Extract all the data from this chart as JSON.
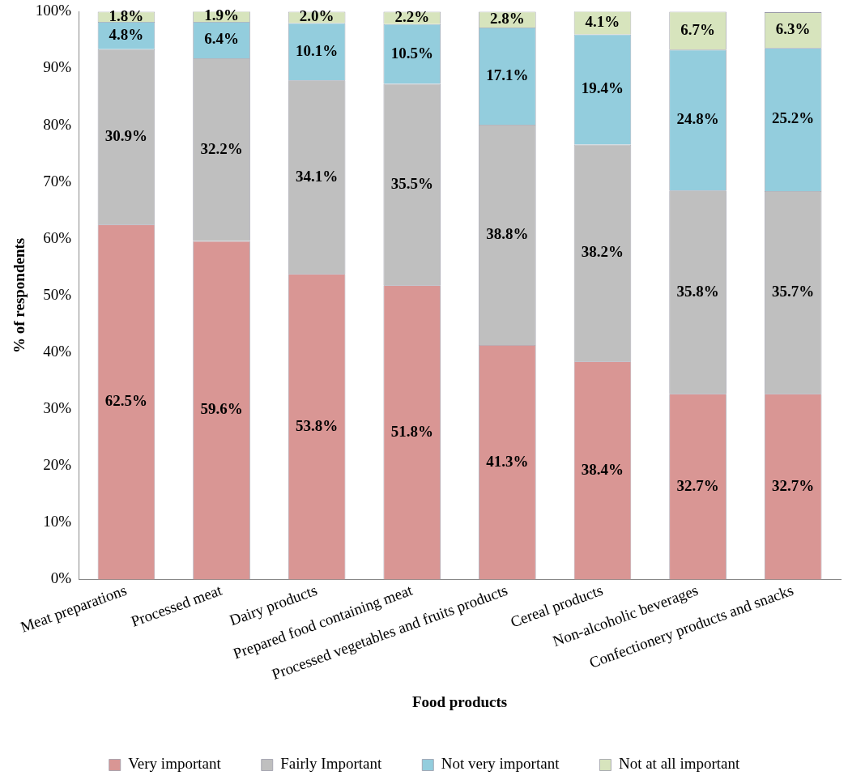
{
  "chart_data": {
    "type": "bar",
    "stacked": true,
    "xlabel": "Food products",
    "ylabel": "% of respondents",
    "categories": [
      "Meat preparations",
      "Processed meat",
      "Dairy products",
      "Prepared food containing meat",
      "Processed vegetables and fruits products",
      "Cereal products",
      "Non-alcoholic beverages",
      "Confectionery products and snacks"
    ],
    "series": [
      {
        "name": "Very important",
        "color": "#d99694",
        "values": [
          62.5,
          59.6,
          53.8,
          51.8,
          41.3,
          38.4,
          32.7,
          32.7
        ]
      },
      {
        "name": "Fairly Important",
        "color": "#bfbfbf",
        "values": [
          30.9,
          32.2,
          34.1,
          35.5,
          38.8,
          38.2,
          35.8,
          35.7
        ]
      },
      {
        "name": "Not very important",
        "color": "#93cddd",
        "values": [
          4.8,
          6.4,
          10.1,
          10.5,
          17.1,
          19.4,
          24.8,
          25.2
        ]
      },
      {
        "name": "Not at all important",
        "color": "#d7e4bd",
        "values": [
          1.8,
          1.9,
          2.0,
          2.2,
          2.8,
          4.1,
          6.7,
          6.3
        ]
      }
    ],
    "value_labels": [
      [
        "62.5%",
        "59.6%",
        "53.8%",
        "51.8%",
        "41.3%",
        "38.4%",
        "32.7%",
        "32.7%"
      ],
      [
        "30.9%",
        "32.2%",
        "34.1%",
        "35.5%",
        "38.8%",
        "38.2%",
        "35.8%",
        "35.7%"
      ],
      [
        "4.8%",
        "6.4%",
        "10.1%",
        "10.5%",
        "17.1%",
        "19.4%",
        "24.8%",
        "25.2%"
      ],
      [
        "1.8%",
        "1.9%",
        "2.0%",
        "2.2%",
        "2.8%",
        "4.1%",
        "6.7%",
        "6.3%"
      ]
    ],
    "ylim": [
      0,
      100
    ],
    "yticks": [
      {
        "value": 0,
        "label": "0%"
      },
      {
        "value": 10,
        "label": "10%"
      },
      {
        "value": 20,
        "label": "20%"
      },
      {
        "value": 30,
        "label": "30%"
      },
      {
        "value": 40,
        "label": "40%"
      },
      {
        "value": 50,
        "label": "50%"
      },
      {
        "value": 60,
        "label": "60%"
      },
      {
        "value": 70,
        "label": "70%"
      },
      {
        "value": 80,
        "label": "80%"
      },
      {
        "value": 90,
        "label": "90%"
      },
      {
        "value": 100,
        "label": "100%"
      }
    ],
    "grid": false,
    "legend": "bottom"
  }
}
